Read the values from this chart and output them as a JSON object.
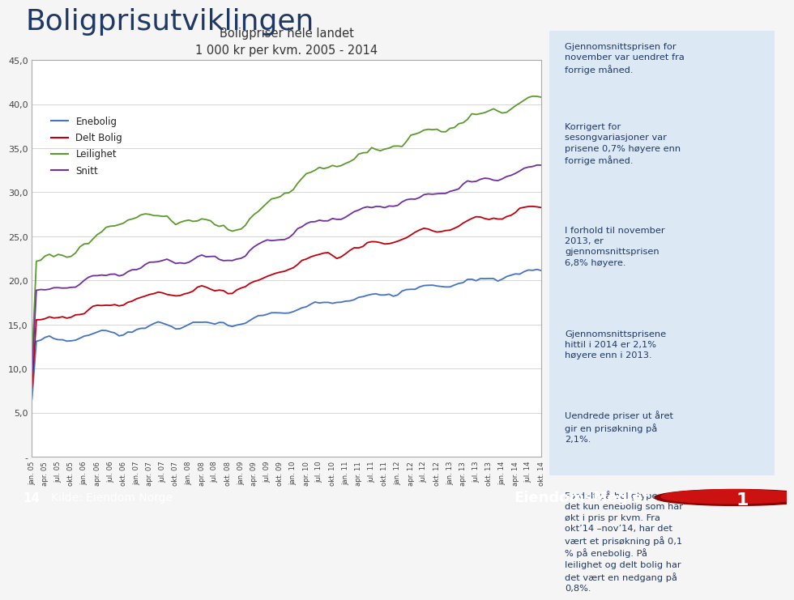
{
  "title": "Boligprisutviklingen",
  "chart_title": "Boligpriser hele landet",
  "chart_subtitle": "1 000 kr per kvm. 2005 - 2014",
  "title_color": "#1F3864",
  "chart_border_color": "#aaaaaa",
  "plot_bg": "#ffffff",
  "fig_bg": "#f5f5f5",
  "right_panel_bg": "#dce9f5",
  "right_panel_text_color": "#1F3864",
  "footer_bg": "#1a3a6e",
  "ytick_labels": [
    "-",
    "5,0",
    "10,0",
    "15,0",
    "20,0",
    "25,0",
    "30,0",
    "35,0",
    "40,0",
    "45,0"
  ],
  "ytick_vals": [
    0,
    5,
    10,
    15,
    20,
    25,
    30,
    35,
    40,
    45
  ],
  "ylim": [
    0,
    45
  ],
  "lines": {
    "Enebolig": {
      "color": "#4472C4",
      "linewidth": 1.3
    },
    "Delt Bolig": {
      "color": "#C0000C",
      "linewidth": 1.3
    },
    "Leilighet": {
      "color": "#5B9A2F",
      "linewidth": 1.3
    },
    "Snitt": {
      "color": "#7030A0",
      "linewidth": 1.3
    }
  },
  "right_panel_texts": [
    "Gjennomsnittsprisen for\nnovember var uendret fra\nforrige måned.",
    "Korrigert for\nsesongvariasjoner var\nprisene 0,7% høyere enn\nforrige måned.",
    "I forhold til november\n2013, er\ngjennomsnittsprisen\n6,8% høyere.",
    "Gjennomsnittsprisene\nhittil i 2014 er 2,1%\nhøyere enn i 2013.",
    "Uendrede priser ut året\ngir en prisøkning på\n2,1%.",
    "Fordelt på boligtype, er\ndet kun enebolig som har\nøkt i pris pr kvm. Fra\nokt’14 –nov’14, har det\nvært et prisøkning på 0,1\n% på enebolig. På\nleilighet og delt bolig har\ndet vært en nedgang på\n0,8%."
  ]
}
